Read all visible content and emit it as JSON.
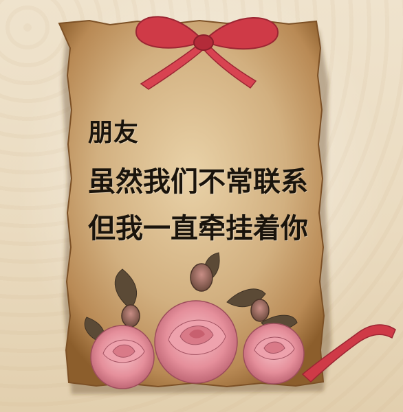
{
  "message": {
    "line1": "朋友",
    "line2": "虽然我们不常联系",
    "line3": "但我一直牵挂着你"
  },
  "colors": {
    "paper": "#c9a877",
    "paper_edge": "#8c5e2c",
    "ribbon": "#d2394a",
    "rose": "#e68f9c",
    "leaf": "#5b4a36",
    "text": "#1a140c"
  }
}
